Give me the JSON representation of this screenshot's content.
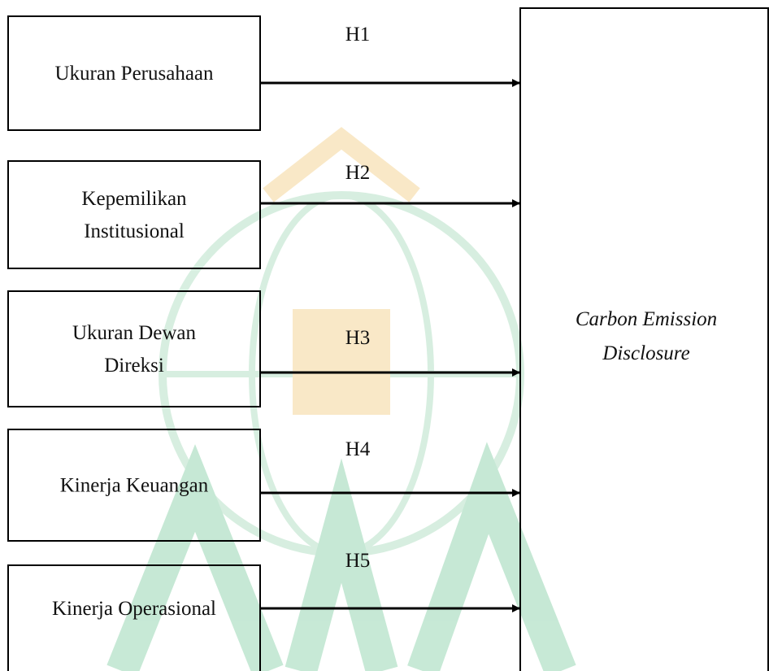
{
  "nodes": [
    {
      "label": [
        "Ukuran Perusahaan"
      ]
    },
    {
      "label": [
        "Kepemilikan",
        "Institusional"
      ]
    },
    {
      "label": [
        "Ukuran Dewan",
        "Direksi"
      ]
    },
    {
      "label": [
        "Kinerja Keuangan"
      ]
    },
    {
      "label": [
        "Kinerja Operasional"
      ]
    }
  ],
  "target": {
    "label": [
      "Carbon Emission",
      "Disclosure"
    ]
  },
  "edges": [
    {
      "label": "H1"
    },
    {
      "label": "H2"
    },
    {
      "label": "H3"
    },
    {
      "label": "H4"
    },
    {
      "label": "H5"
    }
  ]
}
